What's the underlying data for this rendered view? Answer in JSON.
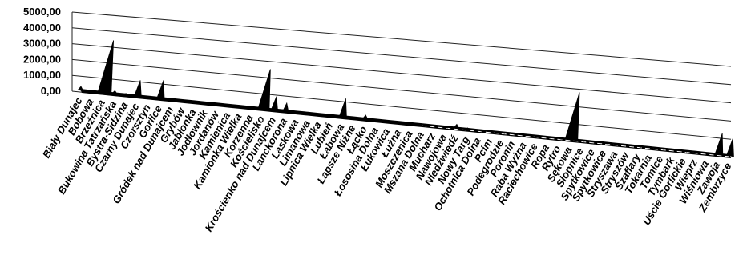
{
  "chart_data": {
    "type": "area",
    "title": "",
    "xlabel": "",
    "ylabel": "",
    "ylim": [
      0,
      5000
    ],
    "grid": true,
    "legend": "none",
    "yticks": [
      "0,00",
      "1000,00",
      "2000,00",
      "3000,00",
      "4000,00",
      "5000,00"
    ],
    "categories": [
      "Biały Dunajec",
      "Bobowa",
      "Brzeźnica",
      "Bukowina Tatrzańska",
      "Bystra-Sidzina",
      "Czarny Dunajec",
      "Czorsztyn",
      "Gorlice",
      "Gródek nad Dunajcem",
      "Grybów",
      "Jabłonka",
      "Jodłownik",
      "Jordanów",
      "Kamienica",
      "Kamionka Wielka",
      "Korzenna",
      "Kościelisko",
      "Krościenko nad Dunajcem",
      "Lanckorona",
      "Laskowa",
      "Limanowa",
      "Lipnica Wielka",
      "Lubień",
      "Łabowa",
      "Łapsze Niżne",
      "Łącko",
      "Łososina Dolna",
      "Łukowica",
      "Łużna",
      "Moszczenica",
      "Mszana Dolna",
      "Mucharz",
      "Nawojowa",
      "Niedźwiedź",
      "Nowy Targ",
      "Ochotnica Dolna",
      "Pcim",
      "Podegrodzie",
      "Poronin",
      "Raba Wyżna",
      "Raciechowice",
      "Ropa",
      "Rytro",
      "Sękowa",
      "Słopnice",
      "Spytkowice",
      "Spytkowice",
      "Stryszawa",
      "Stryszów",
      "Szaflary",
      "Tokarnia",
      "Tomice",
      "Tymbark",
      "Uście Gorlickie",
      "Wieprz",
      "Wiśniowa",
      "Zawoja",
      "Zembrzyce"
    ],
    "values": [
      250,
      50,
      3300,
      200,
      100,
      1000,
      50,
      1150,
      60,
      40,
      30,
      30,
      20,
      40,
      40,
      30,
      2500,
      850,
      500,
      50,
      20,
      10,
      50,
      1150,
      20,
      250,
      20,
      30,
      10,
      40,
      10,
      20,
      10,
      250,
      100,
      50,
      20,
      10,
      10,
      10,
      10,
      10,
      10,
      3000,
      10,
      10,
      10,
      20,
      10,
      10,
      10,
      10,
      10,
      10,
      10,
      10,
      1350,
      1100
    ],
    "peaks": [
      0,
      2,
      3,
      5,
      7,
      16,
      17,
      18,
      23,
      25,
      33,
      34,
      35,
      38,
      43,
      56,
      57
    ]
  }
}
